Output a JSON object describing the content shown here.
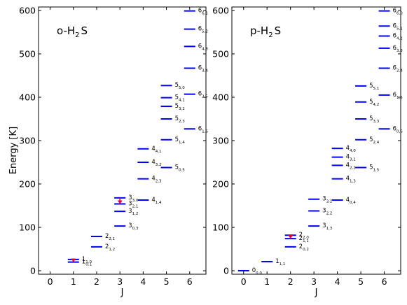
{
  "figure": {
    "ylabel": "Energy [K]",
    "xlabel": "J"
  },
  "chart_data": [
    {
      "type": "scatter",
      "subtype": "energy-level-diagram",
      "title": "o-H",
      "title_sub": "2",
      "title_end": "S",
      "xlabel": "J",
      "ylabel": "Energy [K]",
      "xlim": [
        -0.5,
        6.7
      ],
      "ylim": [
        -8,
        608
      ],
      "xticks": [
        0,
        1,
        2,
        3,
        4,
        5,
        6
      ],
      "yticks": [
        0,
        100,
        200,
        300,
        400,
        500,
        600
      ],
      "level_color": "#0000ff",
      "transition_color": "#e8002a",
      "levels": [
        {
          "J": 1,
          "E": 26,
          "label": "1",
          "sub": "1,0"
        },
        {
          "J": 1,
          "E": 20,
          "label": "1",
          "sub": "0,1"
        },
        {
          "J": 2,
          "E": 79,
          "label": "2",
          "sub": "2,1"
        },
        {
          "J": 2,
          "E": 55,
          "label": "2",
          "sub": "1,2"
        },
        {
          "J": 3,
          "E": 168,
          "label": "3",
          "sub": "3,0"
        },
        {
          "J": 3,
          "E": 154,
          "label": "3",
          "sub": "2,1"
        },
        {
          "J": 3,
          "E": 137,
          "label": "3",
          "sub": "1,2"
        },
        {
          "J": 3,
          "E": 103,
          "label": "3",
          "sub": "0,3"
        },
        {
          "J": 4,
          "E": 281,
          "label": "4",
          "sub": "4,1"
        },
        {
          "J": 4,
          "E": 250,
          "label": "4",
          "sub": "3,2"
        },
        {
          "J": 4,
          "E": 212,
          "label": "4",
          "sub": "2,3"
        },
        {
          "J": 4,
          "E": 163,
          "label": "4",
          "sub": "1,4"
        },
        {
          "J": 5,
          "E": 427,
          "label": "5",
          "sub": "5,0"
        },
        {
          "J": 5,
          "E": 399,
          "label": "5",
          "sub": "4,1"
        },
        {
          "J": 5,
          "E": 379,
          "label": "5",
          "sub": "3,2"
        },
        {
          "J": 5,
          "E": 350,
          "label": "5",
          "sub": "2,3"
        },
        {
          "J": 5,
          "E": 302,
          "label": "5",
          "sub": "1,4"
        },
        {
          "J": 5,
          "E": 238,
          "label": "5",
          "sub": "0,5"
        },
        {
          "J": 6,
          "E": 599,
          "label": "6",
          "sub": "6,1"
        },
        {
          "J": 6,
          "E": 557,
          "label": "6",
          "sub": "5,2"
        },
        {
          "J": 6,
          "E": 517,
          "label": "6",
          "sub": "4,3"
        },
        {
          "J": 6,
          "E": 467,
          "label": "6",
          "sub": "3,4"
        },
        {
          "J": 6,
          "E": 407,
          "label": "6",
          "sub": "2,5"
        },
        {
          "J": 6,
          "E": 327,
          "label": "6",
          "sub": "1,6"
        }
      ],
      "transitions": [
        {
          "J": 1,
          "E_upper": 26,
          "E_lower": 20
        },
        {
          "J": 3,
          "E_upper": 168,
          "E_lower": 154
        }
      ]
    },
    {
      "type": "scatter",
      "subtype": "energy-level-diagram",
      "title": "p-H",
      "title_sub": "2",
      "title_end": "S",
      "xlabel": "J",
      "ylabel": "",
      "xlim": [
        -0.5,
        6.7
      ],
      "ylim": [
        -8,
        608
      ],
      "xticks": [
        0,
        1,
        2,
        3,
        4,
        5,
        6
      ],
      "yticks": [
        0,
        100,
        200,
        300,
        400,
        500,
        600
      ],
      "level_color": "#0000ff",
      "transition_color": "#e8002a",
      "levels": [
        {
          "J": 0,
          "E": 0,
          "label": "0",
          "sub": "0,0"
        },
        {
          "J": 1,
          "E": 21,
          "label": "1",
          "sub": "1,1"
        },
        {
          "J": 2,
          "E": 82,
          "label": "2",
          "sub": "2,0"
        },
        {
          "J": 2,
          "E": 74,
          "label": "2",
          "sub": "1,1"
        },
        {
          "J": 2,
          "E": 55,
          "label": "2",
          "sub": "0,2"
        },
        {
          "J": 3,
          "E": 165,
          "label": "3",
          "sub": "3,1"
        },
        {
          "J": 3,
          "E": 138,
          "label": "3",
          "sub": "2,2"
        },
        {
          "J": 3,
          "E": 103,
          "label": "3",
          "sub": "1,3"
        },
        {
          "J": 4,
          "E": 282,
          "label": "4",
          "sub": "4,0"
        },
        {
          "J": 4,
          "E": 262,
          "label": "4",
          "sub": "3,1"
        },
        {
          "J": 4,
          "E": 243,
          "label": "4",
          "sub": "2,2"
        },
        {
          "J": 4,
          "E": 212,
          "label": "4",
          "sub": "1,3"
        },
        {
          "J": 4,
          "E": 163,
          "label": "4",
          "sub": "0,4"
        },
        {
          "J": 5,
          "E": 426,
          "label": "5",
          "sub": "5,1"
        },
        {
          "J": 5,
          "E": 389,
          "label": "5",
          "sub": "4,2"
        },
        {
          "J": 5,
          "E": 350,
          "label": "5",
          "sub": "3,3"
        },
        {
          "J": 5,
          "E": 302,
          "label": "5",
          "sub": "2,4"
        },
        {
          "J": 5,
          "E": 238,
          "label": "5",
          "sub": "1,5"
        },
        {
          "J": 6,
          "E": 599,
          "label": "6",
          "sub": "6,0"
        },
        {
          "J": 6,
          "E": 564,
          "label": "6",
          "sub": "5,1"
        },
        {
          "J": 6,
          "E": 541,
          "label": "6",
          "sub": "4,2"
        },
        {
          "J": 6,
          "E": 513,
          "label": "6",
          "sub": "3,3"
        },
        {
          "J": 6,
          "E": 467,
          "label": "6",
          "sub": "2,4"
        },
        {
          "J": 6,
          "E": 405,
          "label": "6",
          "sub": "1,5"
        },
        {
          "J": 6,
          "E": 327,
          "label": "6",
          "sub": "0,6"
        }
      ],
      "transitions": [
        {
          "J": 2,
          "E_upper": 82,
          "E_lower": 74
        }
      ]
    }
  ]
}
